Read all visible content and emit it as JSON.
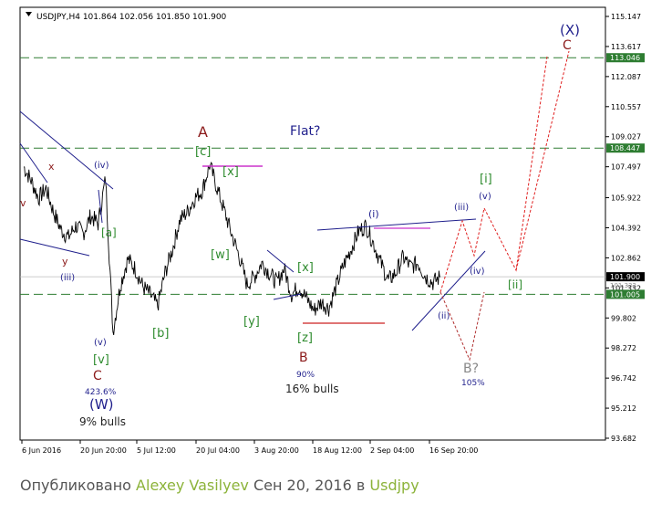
{
  "chart_data": {
    "type": "line",
    "title": "USDJPY,H4  101.864 102.056 101.850 101.900",
    "x_tick_labels": [
      "6 Jun 2016",
      "20 Jun 20:00",
      "5 Jul 12:00",
      "20 Jul 04:00",
      "3 Aug 20:00",
      "18 Aug 12:00",
      "2 Sep 04:00",
      "16 Sep 20:00"
    ],
    "y_tick_labels": [
      "115.147",
      "113.617",
      "112.087",
      "110.557",
      "109.027",
      "107.497",
      "105.922",
      "104.392",
      "102.862",
      "101.332",
      "99.802",
      "98.272",
      "96.742",
      "95.212",
      "93.682"
    ],
    "ylim": [
      93.682,
      115.147
    ],
    "current_price": "101.900",
    "horizontal_levels": [
      {
        "label": "113.046",
        "value": 113.046
      },
      {
        "label": "108.447",
        "value": 108.447
      },
      {
        "label": "101.005",
        "value": 101.005
      }
    ],
    "series": [
      {
        "values": [
          107.5,
          106.8,
          105.9,
          106.4,
          105.2,
          104.3,
          103.9,
          104.5,
          104.1,
          105.0,
          104.6,
          106.9,
          99.1,
          101.5,
          102.8,
          102.3,
          101.4,
          101.0,
          100.4,
          102.1,
          103.3,
          104.8,
          105.2,
          105.9,
          106.3,
          107.6,
          106.4,
          105.2,
          104.0,
          102.9,
          101.5,
          101.9,
          102.6,
          102.1,
          101.6,
          102.3,
          101.0,
          101.4,
          100.8,
          100.2,
          100.6,
          100.3,
          101.4,
          102.5,
          103.3,
          104.2,
          104.5,
          103.6,
          102.6,
          101.7,
          102.1,
          102.9,
          102.4,
          102.6,
          101.9,
          101.6,
          101.9
        ]
      }
    ],
    "annotations": {
      "wave_labels": [
        {
          "text": "(X)",
          "color": "#1f1f8c"
        },
        {
          "text": "C",
          "color": "#8b1a1a"
        },
        {
          "text": "A",
          "color": "#8b1a1a"
        },
        {
          "text": "[c]",
          "color": "#2e8b2e"
        },
        {
          "text": "Flat?",
          "color": "#1f1f8c"
        },
        {
          "text": "x",
          "color": "#8b1a1a"
        },
        {
          "text": "(iv)",
          "color": "#1f1f8c"
        },
        {
          "text": "[x]",
          "color": "#2e8b2e"
        },
        {
          "text": "[a]",
          "color": "#2e8b2e"
        },
        {
          "text": "[w]",
          "color": "#2e8b2e"
        },
        {
          "text": "y",
          "color": "#8b1a1a"
        },
        {
          "text": "(iii)",
          "color": "#1f1f8c"
        },
        {
          "text": "[x]",
          "color": "#2e8b2e"
        },
        {
          "text": "[b]",
          "color": "#2e8b2e"
        },
        {
          "text": "[y]",
          "color": "#2e8b2e"
        },
        {
          "text": "(i)",
          "color": "#1f1f8c"
        },
        {
          "text": "(iii)",
          "color": "#1f1f8c"
        },
        {
          "text": "(v)",
          "color": "#1f1f8c"
        },
        {
          "text": "[i]",
          "color": "#2e8b2e"
        },
        {
          "text": "(iv)",
          "color": "#1f1f8c"
        },
        {
          "text": "[ii]",
          "color": "#2e8b2e"
        },
        {
          "text": "(ii)",
          "color": "#1f1f8c"
        },
        {
          "text": "(v)",
          "color": "#1f1f8c"
        },
        {
          "text": "[v]",
          "color": "#2e8b2e"
        },
        {
          "text": "C",
          "color": "#8b1a1a"
        },
        {
          "text": "423.6%",
          "color": "#1f1f8c"
        },
        {
          "text": "(W)",
          "color": "#1f1f8c"
        },
        {
          "text": "9% bulls",
          "color": "#222222"
        },
        {
          "text": "[z]",
          "color": "#2e8b2e"
        },
        {
          "text": "B",
          "color": "#8b1a1a"
        },
        {
          "text": "90%",
          "color": "#1f1f8c"
        },
        {
          "text": "16% bulls",
          "color": "#222222"
        },
        {
          "text": "B?",
          "color": "#888888"
        },
        {
          "text": "105%",
          "color": "#1f1f8c"
        },
        {
          "text": "v",
          "color": "#8b1a1a"
        }
      ]
    },
    "grid": false,
    "colors": {
      "price": "#000000",
      "level": "#2e7d32",
      "trendline": "#1f1f8c",
      "magenta": "#cc33cc",
      "red": "#8b1a1a",
      "forecast_red": "#e02020",
      "forecast_maroon": "#b03030",
      "current_price_line": "#bbbbbb"
    }
  },
  "caption": {
    "prefix": "Опубликовано ",
    "author": "Alexey Vasilyev",
    "middle": " Сен 20, 2016 в ",
    "instrument": "Usdjpy"
  }
}
